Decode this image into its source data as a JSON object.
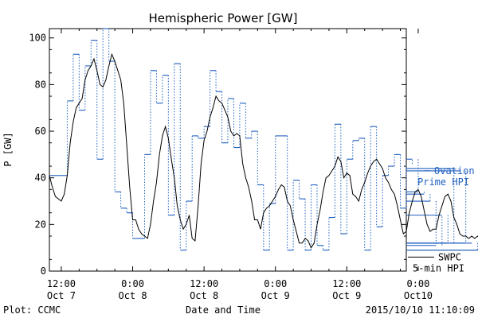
{
  "chart_data": {
    "type": "line",
    "title": "Hemispheric Power [GW]",
    "ylabel": "P [GW]",
    "xlabel": "Date and Time",
    "ylim": [
      0,
      104
    ],
    "yticks": [
      0,
      20,
      40,
      60,
      80,
      100
    ],
    "xlim_hours": [
      -2,
      58
    ],
    "xticks": [
      {
        "hour": 0,
        "time": "12:00",
        "date": "Oct 7"
      },
      {
        "hour": 12,
        "time": "0:00",
        "date": "Oct 8"
      },
      {
        "hour": 24,
        "time": "12:00",
        "date": "Oct 8"
      },
      {
        "hour": 36,
        "time": "0:00",
        "date": "Oct 9"
      },
      {
        "hour": 48,
        "time": "12:00",
        "date": "Oct 9"
      },
      {
        "hour": 60,
        "time": "0:00",
        "date": "Oct10"
      }
    ],
    "series": [
      {
        "name": "Ovation Prime HPI",
        "color": "#1f5fbf",
        "style": "dotted-step",
        "legend": [
          "Ovation",
          "Prime HPI"
        ],
        "points": [
          [
            -2,
            41
          ],
          [
            0,
            41
          ],
          [
            1,
            73
          ],
          [
            2,
            93
          ],
          [
            3,
            69
          ],
          [
            4,
            88
          ],
          [
            5,
            99
          ],
          [
            6,
            48
          ],
          [
            7,
            104
          ],
          [
            8,
            90
          ],
          [
            9,
            34
          ],
          [
            10,
            27
          ],
          [
            11,
            25
          ],
          [
            12,
            14
          ],
          [
            13,
            14
          ],
          [
            14,
            50
          ],
          [
            15,
            86
          ],
          [
            16,
            72
          ],
          [
            17,
            84
          ],
          [
            18,
            24
          ],
          [
            19,
            89
          ],
          [
            20,
            9
          ],
          [
            21,
            30
          ],
          [
            22,
            58
          ],
          [
            23,
            57
          ],
          [
            24,
            62
          ],
          [
            25,
            86
          ],
          [
            26,
            77
          ],
          [
            27,
            55
          ],
          [
            28,
            74
          ],
          [
            29,
            53
          ],
          [
            30,
            72
          ],
          [
            31,
            57
          ],
          [
            32,
            60
          ],
          [
            33,
            37
          ],
          [
            34,
            9
          ],
          [
            35,
            29
          ],
          [
            36,
            58
          ],
          [
            37,
            58
          ],
          [
            38,
            9
          ],
          [
            39,
            39
          ],
          [
            40,
            31
          ],
          [
            41,
            9
          ],
          [
            42,
            37
          ],
          [
            43,
            11
          ],
          [
            44,
            9
          ],
          [
            45,
            23
          ],
          [
            46,
            63
          ],
          [
            47,
            16
          ],
          [
            48,
            48
          ],
          [
            49,
            56
          ],
          [
            50,
            57
          ],
          [
            51,
            9
          ],
          [
            52,
            62
          ],
          [
            53,
            19
          ],
          [
            54,
            41
          ],
          [
            55,
            45
          ],
          [
            56,
            50
          ],
          [
            57,
            27
          ],
          [
            58,
            46
          ],
          [
            59,
            48
          ],
          [
            60,
            34
          ],
          [
            61,
            33
          ],
          [
            62,
            30
          ],
          [
            63,
            11
          ],
          [
            64,
            24
          ],
          [
            65,
            12
          ],
          [
            66,
            44
          ],
          [
            67,
            43
          ],
          [
            68,
            12
          ],
          [
            69,
            12
          ],
          [
            70,
            9
          ],
          [
            71,
            9
          ]
        ]
      },
      {
        "name": "SWPC 5-min HPI",
        "color": "#000000",
        "style": "line",
        "legend": [
          "SWPC",
          "5-min HPI"
        ],
        "points": [
          [
            -2,
            41
          ],
          [
            -1.5,
            36
          ],
          [
            -1,
            32
          ],
          [
            -0.5,
            31
          ],
          [
            0,
            30
          ],
          [
            0.5,
            33
          ],
          [
            1,
            41
          ],
          [
            1.5,
            55
          ],
          [
            2,
            64
          ],
          [
            2.5,
            70
          ],
          [
            3,
            72
          ],
          [
            3.5,
            74
          ],
          [
            4,
            82
          ],
          [
            4.5,
            86
          ],
          [
            5,
            88
          ],
          [
            5.5,
            91
          ],
          [
            6,
            86
          ],
          [
            6.5,
            80
          ],
          [
            7,
            79
          ],
          [
            7.5,
            82
          ],
          [
            8,
            88
          ],
          [
            8.5,
            93
          ],
          [
            9,
            90
          ],
          [
            9.5,
            86
          ],
          [
            10,
            82
          ],
          [
            10.5,
            72
          ],
          [
            11,
            54
          ],
          [
            11.5,
            36
          ],
          [
            12,
            22
          ],
          [
            12.5,
            22
          ],
          [
            13,
            18
          ],
          [
            13.5,
            16
          ],
          [
            14,
            15
          ],
          [
            14.5,
            14
          ],
          [
            15,
            20
          ],
          [
            15.5,
            30
          ],
          [
            16,
            38
          ],
          [
            16.5,
            50
          ],
          [
            17,
            58
          ],
          [
            17.5,
            62
          ],
          [
            18,
            57
          ],
          [
            18.5,
            48
          ],
          [
            19,
            40
          ],
          [
            19.5,
            28
          ],
          [
            20,
            22
          ],
          [
            20.5,
            18
          ],
          [
            21,
            20
          ],
          [
            21.5,
            24
          ],
          [
            22,
            14
          ],
          [
            22.5,
            13
          ],
          [
            23,
            28
          ],
          [
            23.5,
            46
          ],
          [
            24,
            56
          ],
          [
            24.5,
            60
          ],
          [
            25,
            66
          ],
          [
            25.5,
            70
          ],
          [
            26,
            75
          ],
          [
            26.5,
            73
          ],
          [
            27,
            72
          ],
          [
            27.5,
            69
          ],
          [
            28,
            66
          ],
          [
            28.5,
            60
          ],
          [
            29,
            58
          ],
          [
            29.5,
            59
          ],
          [
            30,
            58
          ],
          [
            30.5,
            46
          ],
          [
            31,
            40
          ],
          [
            31.5,
            36
          ],
          [
            32,
            30
          ],
          [
            32.5,
            22
          ],
          [
            33,
            22
          ],
          [
            33.5,
            18
          ],
          [
            34,
            25
          ],
          [
            34.5,
            27
          ],
          [
            35,
            28
          ],
          [
            35.5,
            30
          ],
          [
            36,
            32
          ],
          [
            36.5,
            35
          ],
          [
            37,
            37
          ],
          [
            37.5,
            36
          ],
          [
            38,
            30
          ],
          [
            38.5,
            28
          ],
          [
            39,
            22
          ],
          [
            39.5,
            17
          ],
          [
            40,
            12
          ],
          [
            40.5,
            12
          ],
          [
            41,
            14
          ],
          [
            41.5,
            13
          ],
          [
            42,
            10
          ],
          [
            42.5,
            12
          ],
          [
            43,
            20
          ],
          [
            43.5,
            26
          ],
          [
            44,
            34
          ],
          [
            44.5,
            40
          ],
          [
            45,
            41
          ],
          [
            45.5,
            43
          ],
          [
            46,
            45
          ],
          [
            46.5,
            49
          ],
          [
            47,
            47
          ],
          [
            47.5,
            40
          ],
          [
            48,
            42
          ],
          [
            48.5,
            41
          ],
          [
            49,
            33
          ],
          [
            49.5,
            32
          ],
          [
            50,
            30
          ],
          [
            50.5,
            35
          ],
          [
            51,
            38
          ],
          [
            51.5,
            42
          ],
          [
            52,
            45
          ],
          [
            52.5,
            47
          ],
          [
            53,
            48
          ],
          [
            53.5,
            46
          ],
          [
            54,
            44
          ],
          [
            54.5,
            40
          ],
          [
            55,
            38
          ],
          [
            55.5,
            35
          ],
          [
            56,
            33
          ],
          [
            56.5,
            28
          ],
          [
            57,
            22
          ],
          [
            57.5,
            16
          ],
          [
            58,
            17
          ],
          [
            58.5,
            25
          ],
          [
            59,
            30
          ],
          [
            59.5,
            34
          ],
          [
            60,
            35
          ],
          [
            60.5,
            32
          ],
          [
            61,
            26
          ],
          [
            61.5,
            20
          ],
          [
            62,
            17
          ],
          [
            62.5,
            18
          ],
          [
            63,
            18
          ],
          [
            63.5,
            24
          ],
          [
            64,
            28
          ],
          [
            64.5,
            32
          ],
          [
            65,
            33
          ],
          [
            65.5,
            30
          ],
          [
            66,
            23
          ],
          [
            66.5,
            20
          ],
          [
            67,
            16
          ],
          [
            67.5,
            15
          ],
          [
            68,
            15
          ],
          [
            68.5,
            14
          ],
          [
            69,
            15
          ],
          [
            69.5,
            14
          ],
          [
            70,
            15
          ],
          [
            70.5,
            14
          ],
          [
            71,
            15
          ]
        ]
      }
    ]
  },
  "footer": {
    "plot_credit": "Plot: CCMC",
    "timestamp": "2015/10/10 11:10:09"
  }
}
